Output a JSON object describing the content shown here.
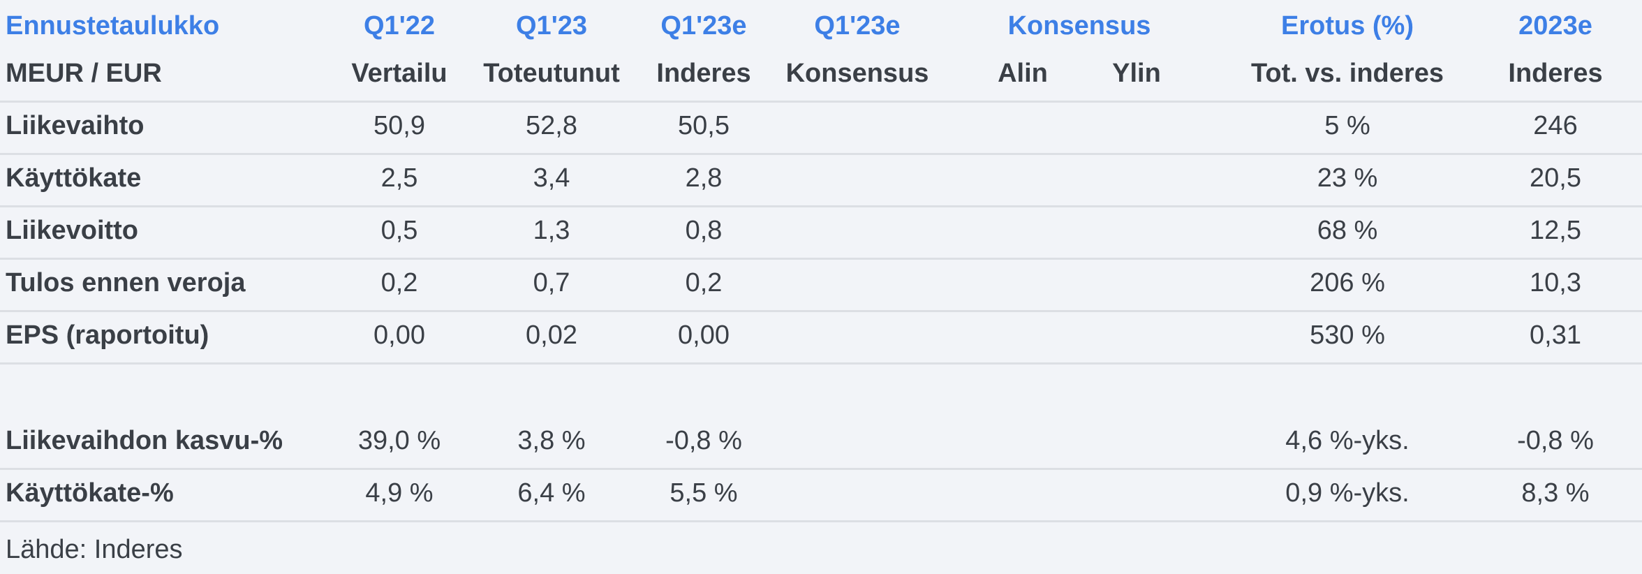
{
  "header_row1": {
    "title": "Ennustetaulukko",
    "col1": "Q1'22",
    "col2": "Q1'23",
    "col3": "Q1'23e",
    "col4": "Q1'23e",
    "col5": "Konsensus",
    "col6": "Erotus (%)",
    "col7": "2023e"
  },
  "header_row2": {
    "unit": "MEUR / EUR",
    "col1": "Vertailu",
    "col2": "Toteutunut",
    "col3": "Inderes",
    "col4": "Konsensus",
    "col5a": "Alin",
    "col5b": "Ylin",
    "col6": "Tot. vs. inderes",
    "col7": "Inderes"
  },
  "rows": [
    {
      "label": "Liikevaihto",
      "q122": "50,9",
      "q123": "52,8",
      "q123e_inderes": "50,5",
      "q123e_konsensus": "",
      "alin": "",
      "ylin": "",
      "erotus": "5 %",
      "e2023": "246"
    },
    {
      "label": "Käyttökate",
      "q122": "2,5",
      "q123": "3,4",
      "q123e_inderes": "2,8",
      "q123e_konsensus": "",
      "alin": "",
      "ylin": "",
      "erotus": "23 %",
      "e2023": "20,5"
    },
    {
      "label": "Liikevoitto",
      "q122": "0,5",
      "q123": "1,3",
      "q123e_inderes": "0,8",
      "q123e_konsensus": "",
      "alin": "",
      "ylin": "",
      "erotus": "68 %",
      "e2023": "12,5"
    },
    {
      "label": "Tulos ennen veroja",
      "q122": "0,2",
      "q123": "0,7",
      "q123e_inderes": "0,2",
      "q123e_konsensus": "",
      "alin": "",
      "ylin": "",
      "erotus": "206 %",
      "e2023": "10,3"
    },
    {
      "label": "EPS (raportoitu)",
      "q122": "0,00",
      "q123": "0,02",
      "q123e_inderes": "0,00",
      "q123e_konsensus": "",
      "alin": "",
      "ylin": "",
      "erotus": "530 %",
      "e2023": "0,31"
    }
  ],
  "rows2": [
    {
      "label": "Liikevaihdon kasvu-%",
      "q122": "39,0 %",
      "q123": "3,8 %",
      "q123e_inderes": "-0,8 %",
      "q123e_konsensus": "",
      "alin": "",
      "ylin": "",
      "erotus": "4,6 %-yks.",
      "e2023": "-0,8 %"
    },
    {
      "label": "Käyttökate-%",
      "q122": "4,9 %",
      "q123": "6,4 %",
      "q123e_inderes": "5,5 %",
      "q123e_konsensus": "",
      "alin": "",
      "ylin": "",
      "erotus": "0,9 %-yks.",
      "e2023": "8,3 %"
    }
  ],
  "source": "Lähde: Inderes",
  "colors": {
    "header_accent": "#3d7fe6",
    "text": "#3a3f46",
    "divider": "#dcdfe4",
    "background": "#f2f4f8"
  }
}
